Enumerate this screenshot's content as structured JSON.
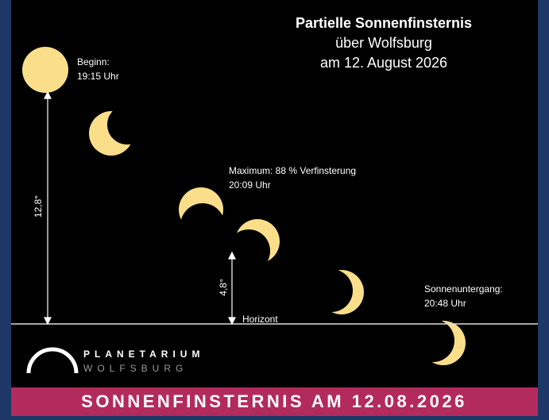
{
  "title": {
    "line1": "Partielle Sonnenfinsternis",
    "line2": "über Wolfsburg",
    "line3": "am 12. August 2026"
  },
  "labels": {
    "begin": {
      "line1": "Beginn:",
      "line2": "19:15 Uhr"
    },
    "maximum": {
      "line1": "Maximum: 88 % Verfinsterung",
      "line2": "20:09 Uhr"
    },
    "sunset": {
      "line1": "Sonnenuntergang:",
      "line2": "20:48 Uhr"
    },
    "angle_begin": "12,8°",
    "angle_max": "4,8°",
    "horizon": "Horizont"
  },
  "logo": {
    "line1": "PLANETARIUM",
    "line2": "WOLFSBURG"
  },
  "banner": "SONNENFINSTERNIS AM 12.08.2026"
}
